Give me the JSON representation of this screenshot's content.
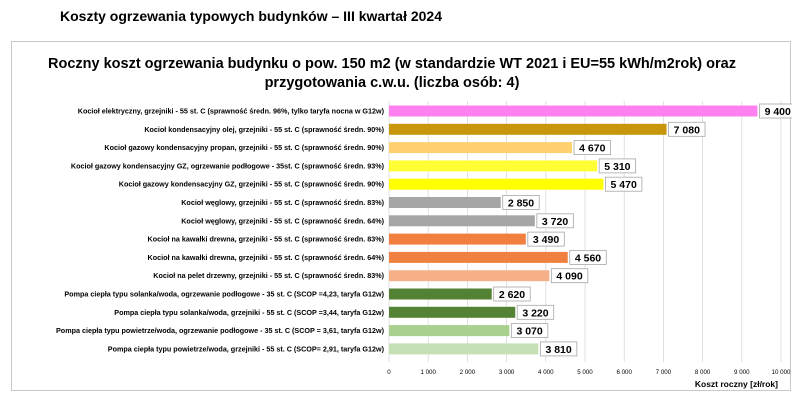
{
  "page": {
    "title": "Koszty ogrzewania typowych budynków – III kwartał 2024"
  },
  "chart_data": {
    "type": "bar",
    "orientation": "horizontal",
    "title_lines": [
      "Roczny koszt ogrzewania budynku  o pow. 150 m2 (w standardzie WT 2021 i EU=55 kWh/m2rok) oraz",
      "przygotowania c.w.u. (liczba osób: 4)"
    ],
    "xlabel": "Koszt roczny [zł/rok]",
    "ylabel": "",
    "xlim": [
      0,
      10000
    ],
    "x_tick_labels": [
      "0",
      "1 000",
      "2 000",
      "3 000",
      "4 000",
      "5 000",
      "6 000",
      "7 000",
      "8 000",
      "9 000",
      "10 000"
    ],
    "grid": true,
    "categories": [
      "Kocioł  elektryczny,  grzejniki - 55 st. C  (sprawność średn. 96%, tylko taryfa nocna w G12w)",
      "Kocioł  kondensacyjny olej,  grzejniki - 55 st. C  (sprawność średn. 90%)",
      "Kocioł gazowy kondensacyjny propan, grzejniki - 55 st. C   (sprawność średn. 90%)",
      "Kocioł gazowy kondensacyjny GZ, ogrzewanie podłogowe - 35st. C   (sprawność średn. 93%)",
      "Kocioł gazowy kondensacyjny GZ, grzejniki - 55 st. C   (sprawność średn. 90%)",
      "Kocioł węglowy,  grzejniki - 55 st. C  (sprawność średn. 83%)",
      "Kocioł węglowy,  grzejniki - 55 st. C  (sprawność średn. 64%)",
      "Kocioł na kawałki drewna, grzejniki - 55 st. C  (sprawność średn. 83%)",
      "Kocioł na kawałki drewna, grzejniki - 55 st. C  (sprawność średn. 64%)",
      "Kocioł na pelet drzewny, grzejniki - 55 st. C  (sprawność średn. 83%)",
      "Pompa ciepła typu solanka/woda, ogrzewanie podłogowe - 35 st. C  (SCOP =4,23, taryfa G12w)",
      "Pompa ciepła typu solanka/woda, grzejniki - 55 st. C  (SCOP =3,44, taryfa G12w)",
      "Pompa ciepła typu powietrze/woda, ogrzewanie podłogowe - 35 st. C (SCOP = 3,61, taryfa G12w)",
      "Pompa ciepła typu powietrze/woda, grzejniki - 55 st. C (SCOP= 2,91, taryfa G12w)"
    ],
    "values": [
      9400,
      7080,
      4670,
      5310,
      5470,
      2850,
      3720,
      3490,
      4560,
      4090,
      2620,
      3220,
      3070,
      3810
    ],
    "value_labels": [
      "9 400",
      "7 080",
      "4 670",
      "5 310",
      "5 470",
      "2 850",
      "3 720",
      "3 490",
      "4 560",
      "4 090",
      "2 620",
      "3 220",
      "3 070",
      "3 810"
    ],
    "bar_colors": [
      "#ff80ee",
      "#c8960c",
      "#ffd070",
      "#ffff33",
      "#ffff00",
      "#a6a6a6",
      "#a6a6a6",
      "#f08040",
      "#f08040",
      "#f5b088",
      "#548235",
      "#548235",
      "#a9d08e",
      "#c5e0b4"
    ]
  }
}
